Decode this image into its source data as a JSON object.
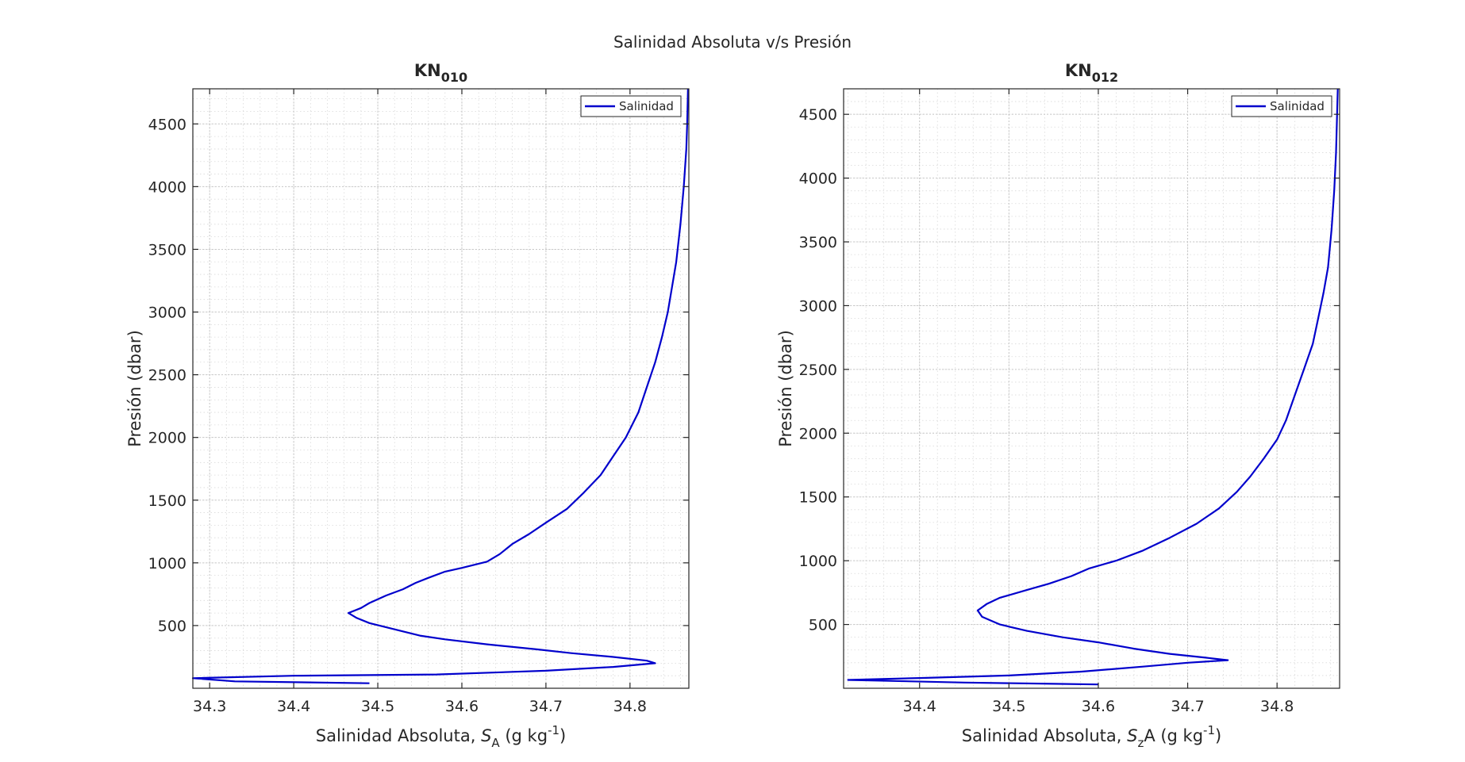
{
  "figure": {
    "suptitle": "Salinidad Absoluta v/s Presión"
  },
  "chart_data": [
    {
      "type": "line",
      "title_main": "KN",
      "title_sub": "010",
      "xlabel_main": "Salinidad Absoluta, ",
      "xlabel_var": "S",
      "xlabel_var_sub": "A",
      "xlabel_units_pre": " (g kg",
      "xlabel_units_sup": "-1",
      "xlabel_units_post": ")",
      "ylabel": "Presión (dbar)",
      "xlim": [
        34.28,
        34.87
      ],
      "ylim": [
        0,
        4780
      ],
      "y_reversed": false,
      "grid": true,
      "minor_grid": true,
      "xticks": [
        34.3,
        34.4,
        34.5,
        34.6,
        34.7,
        34.8
      ],
      "xtick_labels": [
        "34.3",
        "34.4",
        "34.5",
        "34.6",
        "34.7",
        "34.8"
      ],
      "yticks": [
        500,
        1000,
        1500,
        2000,
        2500,
        3000,
        3500,
        4000,
        4500
      ],
      "ytick_labels": [
        "500",
        "1000",
        "1500",
        "2000",
        "2500",
        "3000",
        "3500",
        "4000",
        "4500"
      ],
      "legend": {
        "position": "top-right",
        "entries": [
          "Salinidad"
        ]
      },
      "series": [
        {
          "name": "Salinidad",
          "color": "#0000cc",
          "points": [
            [
              34.49,
              40
            ],
            [
              34.33,
              55
            ],
            [
              34.28,
              80
            ],
            [
              34.4,
              100
            ],
            [
              34.57,
              110
            ],
            [
              34.7,
              140
            ],
            [
              34.78,
              170
            ],
            [
              34.83,
              200
            ],
            [
              34.82,
              220
            ],
            [
              34.78,
              250
            ],
            [
              34.73,
              280
            ],
            [
              34.69,
              310
            ],
            [
              34.63,
              350
            ],
            [
              34.58,
              390
            ],
            [
              34.55,
              420
            ],
            [
              34.52,
              470
            ],
            [
              34.49,
              520
            ],
            [
              34.475,
              560
            ],
            [
              34.465,
              600
            ],
            [
              34.48,
              640
            ],
            [
              34.49,
              680
            ],
            [
              34.51,
              740
            ],
            [
              34.53,
              790
            ],
            [
              34.545,
              840
            ],
            [
              34.56,
              880
            ],
            [
              34.58,
              930
            ],
            [
              34.6,
              960
            ],
            [
              34.63,
              1010
            ],
            [
              34.645,
              1070
            ],
            [
              34.66,
              1150
            ],
            [
              34.68,
              1230
            ],
            [
              34.7,
              1320
            ],
            [
              34.725,
              1430
            ],
            [
              34.745,
              1560
            ],
            [
              34.765,
              1700
            ],
            [
              34.78,
              1850
            ],
            [
              34.795,
              2000
            ],
            [
              34.81,
              2200
            ],
            [
              34.82,
              2400
            ],
            [
              34.83,
              2600
            ],
            [
              34.838,
              2800
            ],
            [
              34.845,
              3000
            ],
            [
              34.85,
              3200
            ],
            [
              34.855,
              3400
            ],
            [
              34.86,
              3700
            ],
            [
              34.864,
              4000
            ],
            [
              34.867,
              4300
            ],
            [
              34.868,
              4500
            ],
            [
              34.869,
              4780
            ]
          ]
        }
      ]
    },
    {
      "type": "line",
      "title_main": "KN",
      "title_sub": "012",
      "xlabel_main": "Salinidad Absoluta, ",
      "xlabel_var": "S",
      "xlabel_var_sub": "z",
      "xlabel_units_pre": "A (g kg",
      "xlabel_units_sup": "-1",
      "xlabel_units_post": ")",
      "ylabel": "Presión (dbar)",
      "xlim": [
        34.315,
        34.87
      ],
      "ylim": [
        0,
        4700
      ],
      "y_reversed": false,
      "grid": true,
      "minor_grid": true,
      "xticks": [
        34.4,
        34.5,
        34.6,
        34.7,
        34.8
      ],
      "xtick_labels": [
        "34.4",
        "34.5",
        "34.6",
        "34.7",
        "34.8"
      ],
      "yticks": [
        500,
        1000,
        1500,
        2000,
        2500,
        3000,
        3500,
        4000,
        4500
      ],
      "ytick_labels": [
        "500",
        "1000",
        "1500",
        "2000",
        "2500",
        "3000",
        "3500",
        "4000",
        "4500"
      ],
      "legend": {
        "position": "top-right",
        "entries": [
          "Salinidad"
        ]
      },
      "series": [
        {
          "name": "Salinidad",
          "color": "#0000cc",
          "points": [
            [
              34.6,
              30
            ],
            [
              34.55,
              35
            ],
            [
              34.45,
              45
            ],
            [
              34.32,
              65
            ],
            [
              34.4,
              80
            ],
            [
              34.5,
              100
            ],
            [
              34.58,
              130
            ],
            [
              34.65,
              170
            ],
            [
              34.7,
              200
            ],
            [
              34.745,
              220
            ],
            [
              34.72,
              240
            ],
            [
              34.68,
              270
            ],
            [
              34.64,
              310
            ],
            [
              34.6,
              360
            ],
            [
              34.56,
              400
            ],
            [
              34.52,
              450
            ],
            [
              34.49,
              500
            ],
            [
              34.47,
              560
            ],
            [
              34.465,
              610
            ],
            [
              34.475,
              660
            ],
            [
              34.49,
              710
            ],
            [
              34.52,
              770
            ],
            [
              34.545,
              820
            ],
            [
              34.57,
              880
            ],
            [
              34.59,
              940
            ],
            [
              34.62,
              1000
            ],
            [
              34.65,
              1080
            ],
            [
              34.68,
              1180
            ],
            [
              34.71,
              1290
            ],
            [
              34.735,
              1410
            ],
            [
              34.755,
              1540
            ],
            [
              34.77,
              1660
            ],
            [
              34.785,
              1800
            ],
            [
              34.8,
              1950
            ],
            [
              34.81,
              2100
            ],
            [
              34.82,
              2300
            ],
            [
              34.83,
              2500
            ],
            [
              34.84,
              2700
            ],
            [
              34.846,
              2900
            ],
            [
              34.852,
              3100
            ],
            [
              34.857,
              3300
            ],
            [
              34.861,
              3600
            ],
            [
              34.864,
              3900
            ],
            [
              34.866,
              4200
            ],
            [
              34.867,
              4450
            ],
            [
              34.868,
              4700
            ]
          ]
        }
      ]
    }
  ]
}
